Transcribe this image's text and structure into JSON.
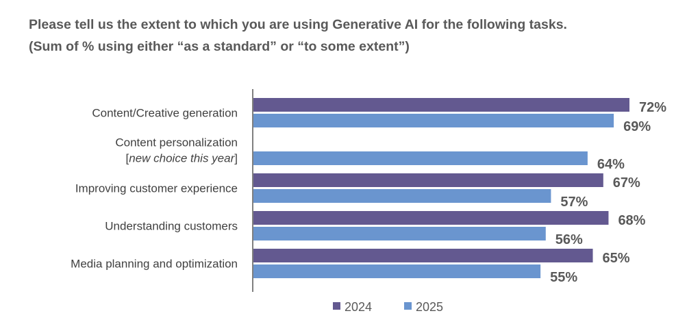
{
  "chart_data": {
    "type": "bar",
    "orientation": "horizontal",
    "title": "Please tell us the extent to which you are using Generative AI for the following tasks.",
    "subtitle": "(Sum of % using either “as a standard” or “to some extent”)",
    "categories": [
      {
        "label": "Content/Creative generation",
        "note": ""
      },
      {
        "label": "Content personalization",
        "note": "new choice this year"
      },
      {
        "label": "Improving customer experience",
        "note": ""
      },
      {
        "label": "Understanding customers",
        "note": ""
      },
      {
        "label": "Media planning and optimization",
        "note": ""
      }
    ],
    "series": [
      {
        "name": "2024",
        "color": "#635990",
        "values": [
          72,
          null,
          67,
          68,
          65
        ]
      },
      {
        "name": "2025",
        "color": "#6A95CF",
        "values": [
          69,
          64,
          57,
          56,
          55
        ]
      }
    ],
    "value_suffix": "%",
    "xlim": [
      0,
      100
    ],
    "grid": false,
    "legend": "bottom"
  }
}
